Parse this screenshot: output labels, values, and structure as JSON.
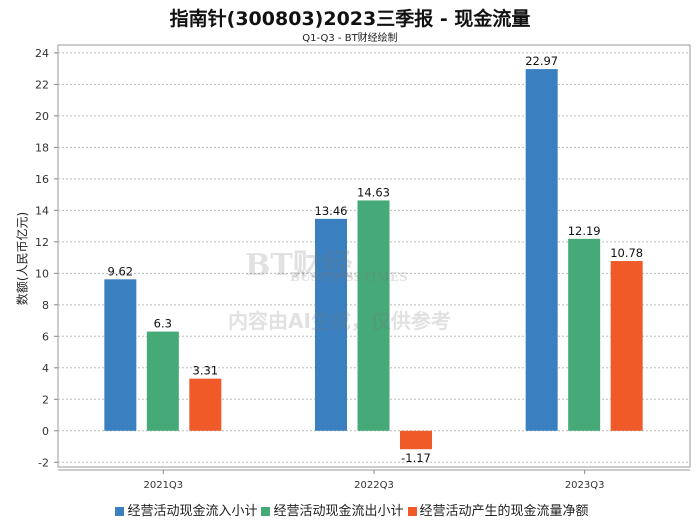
{
  "chart_data": {
    "type": "bar",
    "title": "指南针(300803)2023三季报 - 现金流量",
    "subtitle": "Q1-Q3 - BT财经绘制",
    "xlabel": "",
    "ylabel": "数额(人民币亿元)",
    "ylim": [
      -2.3,
      24.5
    ],
    "yticks": [
      -2,
      0,
      2,
      4,
      6,
      8,
      10,
      12,
      14,
      16,
      18,
      20,
      22,
      24
    ],
    "categories": [
      "2021Q3",
      "2022Q3",
      "2023Q3"
    ],
    "series": [
      {
        "name": "经营活动现金流入小计",
        "color": "#3a80c0",
        "values": [
          9.62,
          13.46,
          22.97
        ]
      },
      {
        "name": "经营活动现金流出小计",
        "color": "#45aa78",
        "values": [
          6.3,
          14.63,
          12.19
        ]
      },
      {
        "name": "经营活动产生的现金流量净额",
        "color": "#f05a28",
        "values": [
          3.31,
          -1.17,
          10.78
        ]
      }
    ],
    "legend": "bottom",
    "grid": true
  },
  "watermark": {
    "logo": "BT财经",
    "logo_sub": "BUSINESSTIMES",
    "notice": "内容由AI生成，仅供参考"
  }
}
